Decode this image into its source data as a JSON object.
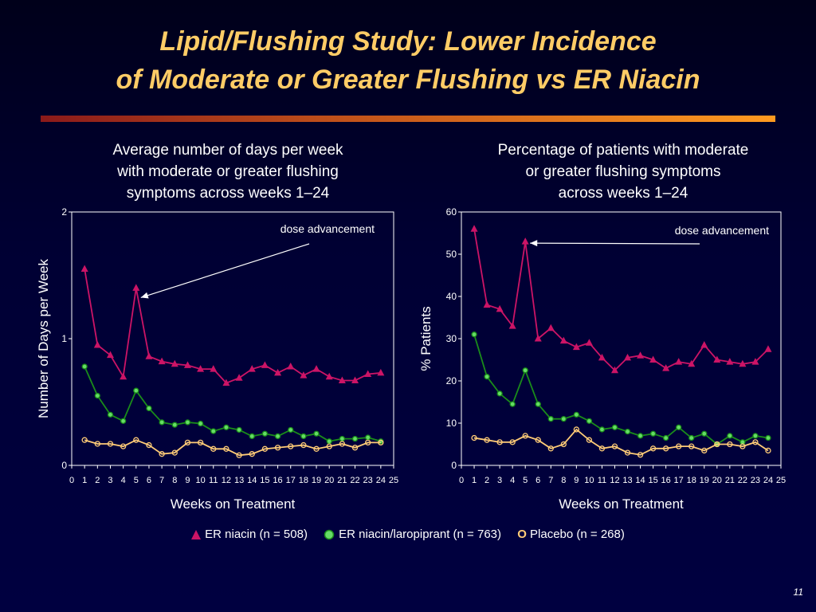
{
  "slide": {
    "title_line1": "Lipid/Flushing Study: Lower Incidence",
    "title_line2": "of Moderate or Greater Flushing vs ER Niacin",
    "page_number": "11"
  },
  "colors": {
    "title": "#ffcc66",
    "er_niacin": "#cc1466",
    "er_niacin_laropiprant": "#1a8c1a",
    "er_niacin_laropiprant_marker": "#66dd66",
    "placebo": "#ffcc77"
  },
  "legend": {
    "er_niacin": "ER niacin (n = 508)",
    "er_niacin_laropiprant": "ER niacin/laropiprant (n = 763)",
    "placebo_marker": "O",
    "placebo": "Placebo (n = 268)"
  },
  "chart_data": [
    {
      "type": "line",
      "title_lines": [
        "Average number of days per week",
        "with moderate or greater flushing",
        "symptoms across weeks 1–24"
      ],
      "xlabel": "Weeks on Treatment",
      "ylabel": "Number of Days per Week",
      "xlim": [
        0,
        25
      ],
      "ylim": [
        0,
        2
      ],
      "yticks": [
        0,
        1,
        2
      ],
      "xticks": [
        0,
        1,
        2,
        3,
        4,
        5,
        6,
        7,
        8,
        9,
        10,
        11,
        12,
        13,
        14,
        15,
        16,
        17,
        18,
        19,
        20,
        21,
        22,
        23,
        24,
        25
      ],
      "x": [
        1,
        2,
        3,
        4,
        5,
        6,
        7,
        8,
        9,
        10,
        11,
        12,
        13,
        14,
        15,
        16,
        17,
        18,
        19,
        20,
        21,
        22,
        23,
        24
      ],
      "annotation": {
        "text": "dose advancement",
        "x": 5
      },
      "series": [
        {
          "key": "er_niacin",
          "marker": "triangle",
          "values": [
            1.55,
            0.95,
            0.87,
            0.7,
            1.4,
            0.86,
            0.82,
            0.8,
            0.79,
            0.76,
            0.76,
            0.65,
            0.69,
            0.76,
            0.79,
            0.73,
            0.78,
            0.71,
            0.76,
            0.7,
            0.67,
            0.67,
            0.72,
            0.73
          ]
        },
        {
          "key": "er_niacin_laropiprant",
          "marker": "circle",
          "values": [
            0.78,
            0.55,
            0.4,
            0.35,
            0.59,
            0.45,
            0.34,
            0.32,
            0.34,
            0.33,
            0.27,
            0.3,
            0.28,
            0.23,
            0.25,
            0.23,
            0.28,
            0.23,
            0.25,
            0.19,
            0.21,
            0.21,
            0.22,
            0.19
          ]
        },
        {
          "key": "placebo",
          "marker": "circle",
          "values": [
            0.2,
            0.17,
            0.17,
            0.15,
            0.2,
            0.16,
            0.09,
            0.1,
            0.18,
            0.18,
            0.13,
            0.13,
            0.08,
            0.09,
            0.13,
            0.14,
            0.15,
            0.16,
            0.13,
            0.15,
            0.17,
            0.14,
            0.18,
            0.18
          ]
        }
      ]
    },
    {
      "type": "line",
      "title_lines": [
        "Percentage of patients with moderate",
        "or greater flushing symptoms",
        "across weeks 1–24"
      ],
      "xlabel": "Weeks on Treatment",
      "ylabel": "% Patients",
      "xlim": [
        0,
        25
      ],
      "ylim": [
        0,
        60
      ],
      "yticks": [
        0,
        10,
        20,
        30,
        40,
        50,
        60
      ],
      "xticks": [
        0,
        1,
        2,
        3,
        4,
        5,
        6,
        7,
        8,
        9,
        10,
        11,
        12,
        13,
        14,
        15,
        16,
        17,
        18,
        19,
        20,
        21,
        22,
        23,
        24,
        25
      ],
      "x": [
        1,
        2,
        3,
        4,
        5,
        6,
        7,
        8,
        9,
        10,
        11,
        12,
        13,
        14,
        15,
        16,
        17,
        18,
        19,
        20,
        21,
        22,
        23,
        24
      ],
      "annotation": {
        "text": "dose advancement",
        "x": 5
      },
      "series": [
        {
          "key": "er_niacin",
          "marker": "triangle",
          "values": [
            56,
            38,
            37,
            33,
            53,
            30,
            32.5,
            29.5,
            28,
            29,
            25.5,
            22.5,
            25.5,
            26,
            25,
            23,
            24.5,
            24,
            28.5,
            25,
            24.5,
            24,
            24.5,
            27.5
          ]
        },
        {
          "key": "er_niacin_laropiprant",
          "marker": "circle",
          "values": [
            31,
            21,
            17,
            14.5,
            22.5,
            14.5,
            11,
            11,
            12,
            10.5,
            8.5,
            9,
            8,
            7,
            7.5,
            6.5,
            9,
            6.5,
            7.5,
            5,
            7,
            5.5,
            7,
            6.5
          ]
        },
        {
          "key": "placebo",
          "marker": "circle",
          "values": [
            6.5,
            6,
            5.5,
            5.5,
            7,
            6,
            4,
            5,
            8.5,
            6,
            4,
            4.5,
            3,
            2.5,
            4,
            4,
            4.5,
            4.5,
            3.5,
            5,
            5,
            4.5,
            5.5,
            3.5
          ]
        }
      ]
    }
  ]
}
